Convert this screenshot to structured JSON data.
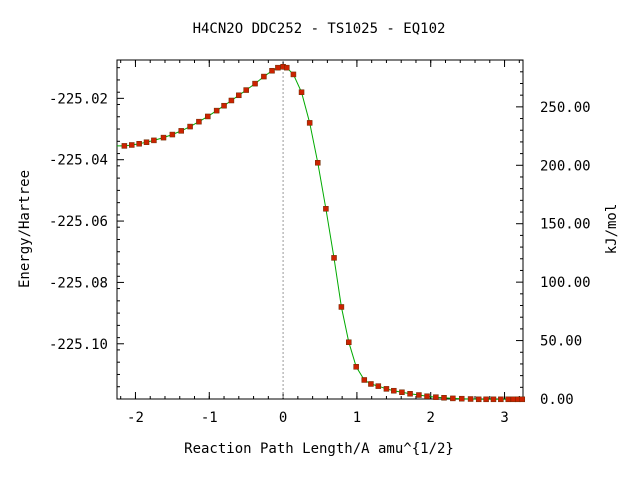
{
  "chart_data": {
    "type": "line",
    "title": "H4CN2O   DDC252 - TS1025 - EQ102",
    "xlabel": "Reaction Path Length/A amu^{1/2}",
    "ylabel": "Energy/Hartree",
    "y2label": "kJ/mol",
    "xlim": [
      -2.25,
      3.25
    ],
    "ylim": [
      -225.118,
      -225.0075
    ],
    "y2lim": [
      0.0,
      290.1
    ],
    "x_ticks": [
      -2,
      -1,
      0,
      1,
      2,
      3
    ],
    "x_tick_labels": [
      "-2",
      "-1",
      "0",
      "1",
      "2",
      "3"
    ],
    "y_ticks": [
      -225.02,
      -225.04,
      -225.06,
      -225.08,
      -225.1
    ],
    "y_tick_labels": [
      "-225.02",
      "-225.04",
      "-225.06",
      "-225.08",
      "-225.10"
    ],
    "y2_ticks": [
      0,
      50,
      100,
      150,
      200,
      250
    ],
    "y2_tick_labels": [
      "0.00",
      "50.00",
      "100.00",
      "150.00",
      "200.00",
      "250.00"
    ],
    "ts_marker_x": 0.0,
    "grid": false,
    "series": [
      {
        "color": "#00aa00",
        "marker_color": "#cc2200",
        "x": [
          -2.15,
          -2.05,
          -1.95,
          -1.85,
          -1.75,
          -1.62,
          -1.5,
          -1.38,
          -1.26,
          -1.14,
          -1.02,
          -0.9,
          -0.8,
          -0.7,
          -0.6,
          -0.5,
          -0.38,
          -0.26,
          -0.15,
          -0.07,
          0.0,
          0.05,
          0.14,
          0.25,
          0.36,
          0.47,
          0.58,
          0.69,
          0.79,
          0.89,
          0.99,
          1.1,
          1.19,
          1.29,
          1.4,
          1.5,
          1.61,
          1.72,
          1.84,
          1.95,
          2.07,
          2.18,
          2.3,
          2.42,
          2.54,
          2.65,
          2.75,
          2.85,
          2.95,
          3.05,
          3.12,
          3.18,
          3.24
        ],
        "values": [
          -225.0355,
          -225.0352,
          -225.0348,
          -225.0343,
          -225.0337,
          -225.0328,
          -225.0318,
          -225.0306,
          -225.0292,
          -225.0276,
          -225.0259,
          -225.024,
          -225.0224,
          -225.0207,
          -225.019,
          -225.0173,
          -225.0152,
          -225.0129,
          -225.011,
          -225.01,
          -225.0097,
          -225.01,
          -225.0122,
          -225.018,
          -225.028,
          -225.041,
          -225.056,
          -225.072,
          -225.088,
          -225.0995,
          -225.1075,
          -225.1118,
          -225.1131,
          -225.1138,
          -225.1147,
          -225.1153,
          -225.1158,
          -225.1163,
          -225.1167,
          -225.1171,
          -225.1174,
          -225.1176,
          -225.1178,
          -225.1179,
          -225.118,
          -225.1181,
          -225.1181,
          -225.1181,
          -225.1181,
          -225.1181,
          -225.1181,
          -225.1181,
          -225.1181
        ]
      }
    ]
  }
}
